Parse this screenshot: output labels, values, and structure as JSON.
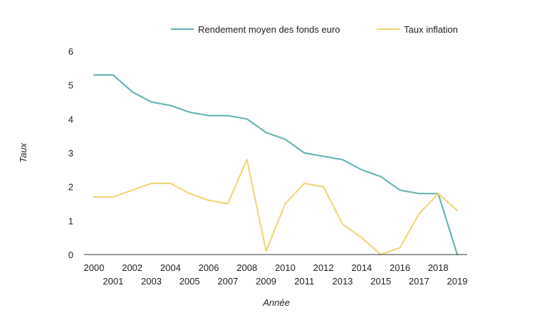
{
  "chart_data": {
    "type": "line",
    "title": "",
    "xlabel": "Année",
    "ylabel": "Taux",
    "x": [
      2000,
      2001,
      2002,
      2003,
      2004,
      2005,
      2006,
      2007,
      2008,
      2009,
      2010,
      2011,
      2012,
      2013,
      2014,
      2015,
      2016,
      2017,
      2018,
      2019
    ],
    "ylim": [
      0,
      6
    ],
    "yticks": [
      "0",
      "1",
      "2",
      "3",
      "4",
      "5",
      "6"
    ],
    "grid": false,
    "legend_position": "top-right",
    "series": [
      {
        "name": "Rendement moyen des fonds euro",
        "color": "#6bb5b5",
        "values": [
          5.3,
          5.3,
          4.8,
          4.5,
          4.4,
          4.2,
          4.1,
          4.1,
          4.0,
          3.6,
          3.4,
          3.0,
          2.9,
          2.8,
          2.5,
          2.3,
          1.9,
          1.8,
          1.8,
          0.0
        ]
      },
      {
        "name": "Taux inflation",
        "color": "#f0d77a",
        "values": [
          1.7,
          1.7,
          1.9,
          2.1,
          2.1,
          1.8,
          1.6,
          1.5,
          2.8,
          0.1,
          1.5,
          2.1,
          2.0,
          0.9,
          0.5,
          0.0,
          0.2,
          1.2,
          1.8,
          1.3
        ]
      }
    ]
  }
}
